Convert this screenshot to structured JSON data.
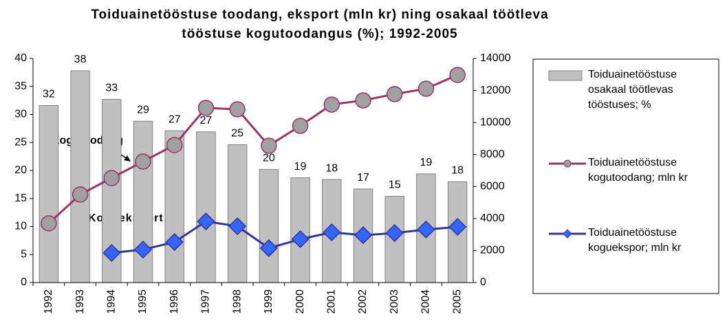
{
  "chart_data": {
    "type": "bar_line",
    "title": [
      "Toiduainetööstuse toodang, eksport (mln kr) ning osakaal töötleva",
      "tööstuse kogutoodangus (%); 1992-2005"
    ],
    "categories": [
      "1992",
      "1993",
      "1994",
      "1995",
      "1996",
      "1997",
      "1998",
      "1999",
      "2000",
      "2001",
      "2002",
      "2003",
      "2004",
      "2005"
    ],
    "series": [
      {
        "name": "Toiduainetööstuse osakaal töötlevas tööstuses; %",
        "type": "bar",
        "color": "#c0c0c0",
        "values": [
          31.6,
          37.8,
          32.7,
          28.8,
          27.1,
          26.9,
          24.6,
          20.2,
          18.7,
          18.4,
          16.7,
          15.4,
          19.4,
          18.0
        ],
        "value_labels": [
          "32",
          "38",
          "33",
          "29",
          "27",
          "27",
          "25",
          "20",
          "19",
          "18",
          "17",
          "15",
          "19",
          "18"
        ]
      },
      {
        "name": "Toiduainetööstuse kogutoodang; mln kr",
        "type": "line",
        "axis": "y2",
        "color": "#993366",
        "marker": "circle",
        "marker_color": "#a0a0a0",
        "values": [
          3700,
          5500,
          6530,
          7560,
          8590,
          10910,
          10820,
          8550,
          9790,
          11120,
          11380,
          11770,
          12110,
          12970
        ]
      },
      {
        "name": "Toiduainetööstuse koguekspor; mln kr",
        "type": "line",
        "axis": "y2",
        "color": "#333399",
        "marker": "diamond",
        "marker_color": "#3366ff",
        "values": [
          null,
          null,
          1850,
          2060,
          2530,
          3820,
          3520,
          2150,
          2710,
          3140,
          2960,
          3090,
          3310,
          3480
        ]
      }
    ],
    "annotations": [
      "Kogutoodang",
      "Kogueksport"
    ],
    "ylim": [
      0,
      40
    ],
    "yticks": [
      0,
      5,
      10,
      15,
      20,
      25,
      30,
      35,
      40
    ],
    "y2lim": [
      0,
      14000
    ],
    "y2ticks": [
      0,
      2000,
      4000,
      6000,
      8000,
      10000,
      12000,
      14000
    ],
    "legend": "right"
  }
}
